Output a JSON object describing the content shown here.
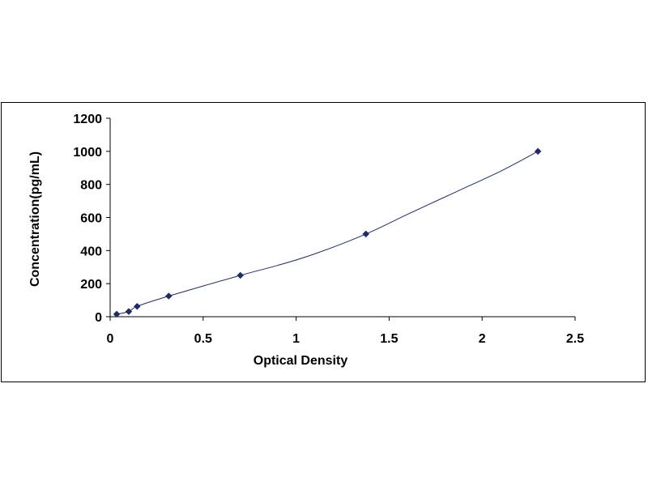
{
  "chart_data": {
    "type": "scatter",
    "title": "",
    "xlabel": "Optical Density",
    "ylabel": "Concentration(pg/mL)",
    "xlim": [
      0,
      2.5
    ],
    "ylim": [
      0,
      1200
    ],
    "x_ticks": [
      0,
      0.5,
      1,
      1.5,
      2,
      2.5
    ],
    "x_tick_labels": [
      "0",
      "0.5",
      "1",
      "1.5",
      "2",
      "2.5"
    ],
    "y_ticks": [
      0,
      200,
      400,
      600,
      800,
      1000,
      1200
    ],
    "y_tick_labels": [
      "0",
      "200",
      "400",
      "600",
      "800",
      "1000",
      "1200"
    ],
    "grid": false,
    "legend": "none",
    "marker": "diamond",
    "series": [
      {
        "x": [
          0.035,
          0.1,
          0.145,
          0.315,
          0.7,
          1.375,
          2.3
        ],
        "y": [
          15.6,
          31.2,
          62.5,
          125,
          250,
          500,
          1000
        ]
      }
    ],
    "fit_curve": {
      "x": [
        0.035,
        0.1,
        0.145,
        0.315,
        0.7,
        0.9,
        1.1,
        1.375,
        1.6,
        1.85,
        2.1,
        2.3
      ],
      "y": [
        15.6,
        31.2,
        62.5,
        125,
        250,
        310,
        380,
        500,
        620,
        750,
        880,
        1000
      ]
    },
    "colors": {
      "marker": "#1f2a6b",
      "line": "#1f2a6b",
      "axis": "#000000"
    }
  }
}
